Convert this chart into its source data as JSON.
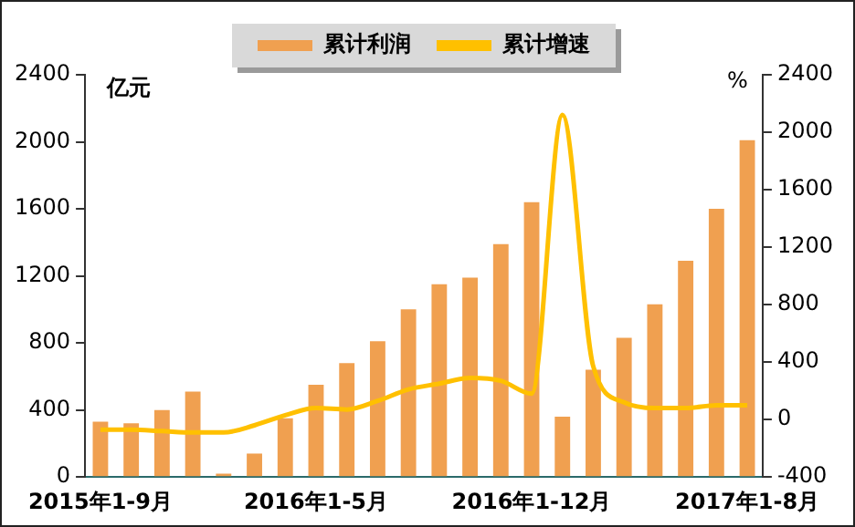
{
  "chart_data": {
    "type": "bar",
    "categories": [
      "2015年1-9月",
      null,
      null,
      null,
      null,
      null,
      null,
      "2016年1-5月",
      null,
      null,
      null,
      null,
      null,
      null,
      "2016年1-12月",
      null,
      null,
      null,
      null,
      null,
      null,
      "2017年1-8月"
    ],
    "series": [
      {
        "name": "累计利润",
        "color": "#f0a050",
        "values": [
          330,
          320,
          400,
          510,
          20,
          140,
          350,
          550,
          680,
          810,
          1000,
          1150,
          1190,
          1390,
          1640,
          360,
          640,
          830,
          1030,
          1290,
          1600,
          2010
        ]
      },
      {
        "name": "累计增速",
        "type": "line",
        "axis": "y2",
        "color": "#ffc000",
        "values": [
          -70,
          -70,
          -80,
          -90,
          -90,
          -40,
          30,
          80,
          70,
          130,
          210,
          250,
          290,
          270,
          180,
          2120,
          370,
          120,
          80,
          80,
          100,
          100
        ]
      }
    ],
    "ylabel": "亿元",
    "y2label": "%",
    "ylim": [
      0,
      2400
    ],
    "yticks": [
      0,
      400,
      800,
      1200,
      1600,
      2000,
      2400
    ],
    "y2lim": [
      -400,
      2400
    ],
    "y2ticks": [
      -400,
      0,
      400,
      800,
      1200,
      1600,
      2000,
      2400
    ],
    "legend": "top",
    "grid": false,
    "marker": "none",
    "line_style": "solid"
  }
}
